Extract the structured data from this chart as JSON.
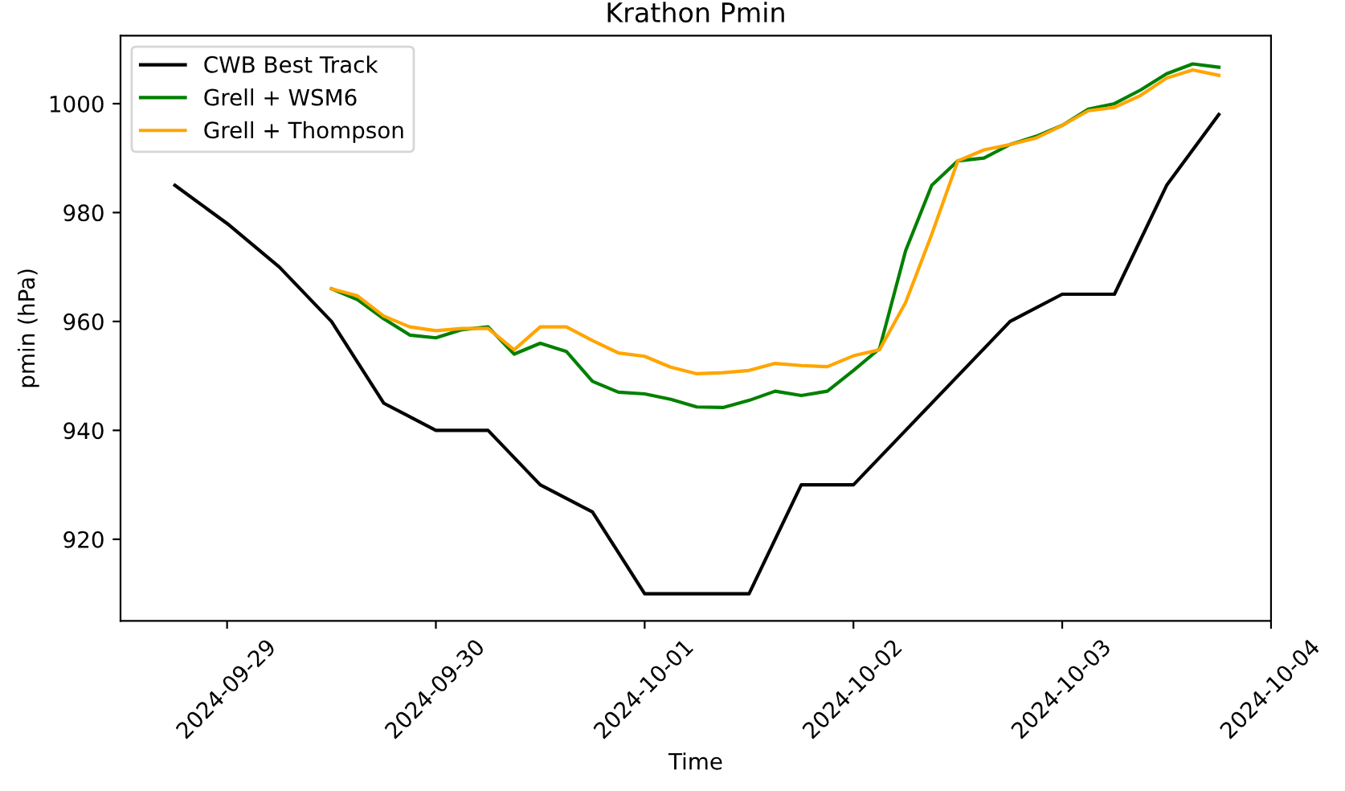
{
  "chart_data": {
    "type": "line",
    "title": "Krathon Pmin",
    "xlabel": "Time",
    "ylabel": "pmin (hPa)",
    "xlim": [
      "2024-09-28T11:45",
      "2024-10-04T00:00"
    ],
    "xticks": [
      "2024-09-29",
      "2024-09-30",
      "2024-10-01",
      "2024-10-02",
      "2024-10-03",
      "2024-10-04"
    ],
    "ylim": [
      905,
      1012.5
    ],
    "yticks": [
      920,
      940,
      960,
      980,
      1000
    ],
    "legend": "top left",
    "grid": false,
    "marker": "none",
    "line_style": "solid",
    "series": [
      {
        "name": "CWB Best Track",
        "color": "#000000",
        "x": [
          "2024-09-28T18:00",
          "2024-09-29T00:00",
          "2024-09-29T06:00",
          "2024-09-29T12:00",
          "2024-09-29T18:00",
          "2024-09-30T00:00",
          "2024-09-30T06:00",
          "2024-09-30T12:00",
          "2024-09-30T18:00",
          "2024-10-01T00:00",
          "2024-10-01T06:00",
          "2024-10-01T12:00",
          "2024-10-01T18:00",
          "2024-10-02T00:00",
          "2024-10-02T06:00",
          "2024-10-02T12:00",
          "2024-10-02T18:00",
          "2024-10-03T00:00",
          "2024-10-03T06:00",
          "2024-10-03T12:00",
          "2024-10-03T18:00"
        ],
        "values": [
          985,
          978,
          970,
          960,
          945,
          940,
          940,
          930,
          925,
          910,
          910,
          910,
          930,
          930,
          940,
          950,
          960,
          965,
          965,
          985,
          998
        ]
      },
      {
        "name": "Grell + WSM6",
        "color": "#008000",
        "x": [
          "2024-09-29T12:00",
          "2024-09-29T15:00",
          "2024-09-29T18:00",
          "2024-09-29T21:00",
          "2024-09-30T00:00",
          "2024-09-30T03:00",
          "2024-09-30T06:00",
          "2024-09-30T09:00",
          "2024-09-30T12:00",
          "2024-09-30T15:00",
          "2024-09-30T18:00",
          "2024-09-30T21:00",
          "2024-10-01T00:00",
          "2024-10-01T03:00",
          "2024-10-01T06:00",
          "2024-10-01T09:00",
          "2024-10-01T12:00",
          "2024-10-01T15:00",
          "2024-10-01T18:00",
          "2024-10-01T21:00",
          "2024-10-02T00:00",
          "2024-10-02T03:00",
          "2024-10-02T06:00",
          "2024-10-02T09:00",
          "2024-10-02T12:00",
          "2024-10-02T15:00",
          "2024-10-02T18:00",
          "2024-10-02T21:00",
          "2024-10-03T00:00",
          "2024-10-03T03:00",
          "2024-10-03T06:00",
          "2024-10-03T09:00",
          "2024-10-03T12:00",
          "2024-10-03T15:00",
          "2024-10-03T18:00"
        ],
        "values": [
          966,
          964,
          960.5,
          957.5,
          957,
          958.5,
          959,
          954,
          956,
          954.5,
          949,
          947,
          946.7,
          945.7,
          944.3,
          944.2,
          945.5,
          947.2,
          946.4,
          947.2,
          951,
          955,
          973,
          985,
          989.5,
          990,
          992.5,
          994,
          996,
          999,
          1000,
          1002.5,
          1005.5,
          1007.3,
          1006.7
        ]
      },
      {
        "name": "Grell + Thompson",
        "color": "#ffa500",
        "x": [
          "2024-09-29T12:00",
          "2024-09-29T15:00",
          "2024-09-29T18:00",
          "2024-09-29T21:00",
          "2024-09-30T00:00",
          "2024-09-30T03:00",
          "2024-09-30T06:00",
          "2024-09-30T09:00",
          "2024-09-30T12:00",
          "2024-09-30T15:00",
          "2024-09-30T18:00",
          "2024-09-30T21:00",
          "2024-10-01T00:00",
          "2024-10-01T03:00",
          "2024-10-01T06:00",
          "2024-10-01T09:00",
          "2024-10-01T12:00",
          "2024-10-01T15:00",
          "2024-10-01T18:00",
          "2024-10-01T21:00",
          "2024-10-02T00:00",
          "2024-10-02T03:00",
          "2024-10-02T06:00",
          "2024-10-02T09:00",
          "2024-10-02T12:00",
          "2024-10-02T15:00",
          "2024-10-02T18:00",
          "2024-10-02T21:00",
          "2024-10-03T00:00",
          "2024-10-03T03:00",
          "2024-10-03T06:00",
          "2024-10-03T09:00",
          "2024-10-03T12:00",
          "2024-10-03T15:00",
          "2024-10-03T18:00"
        ],
        "values": [
          966,
          964.7,
          961,
          959,
          958.3,
          958.7,
          958.7,
          954.8,
          959,
          959,
          956.5,
          954.2,
          953.6,
          951.6,
          950.4,
          950.6,
          951,
          952.3,
          951.9,
          951.7,
          953.7,
          954.8,
          963.5,
          976,
          989.5,
          991.5,
          992.5,
          993.7,
          996,
          998.7,
          999.3,
          1001.5,
          1004.7,
          1006.2,
          1005.2
        ]
      }
    ]
  }
}
